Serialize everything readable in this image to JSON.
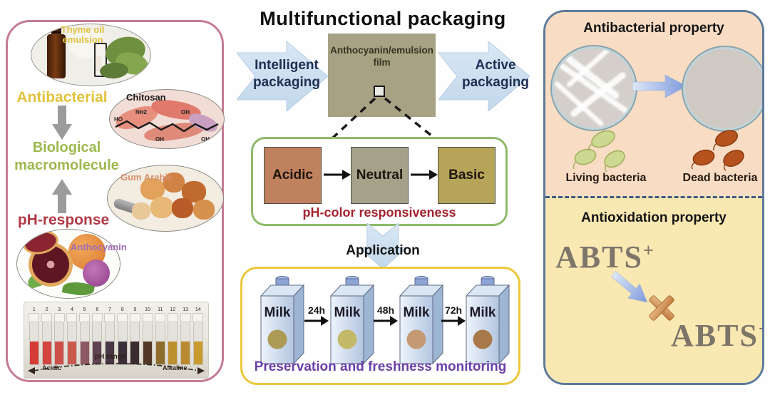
{
  "title": "Multifunctional packaging",
  "left_panel": {
    "thyme_label": "Thyme oil emulsion",
    "antibacterial_label": "Antibacterial",
    "chitosan_label": "Chitosan",
    "structure_labels": {
      "ho": "HO",
      "nh2": "NH2",
      "oh": "OH"
    },
    "biological_label": "Biological macromolecule",
    "gum_arabic_label": "Gum Arabic",
    "ph_response_label": "pH-response",
    "anthocyanin_label": "Anthocyanin",
    "vial_photo": {
      "acidic_label": "Acidic",
      "range_label": "pH range",
      "alkaline_label": "Alkaline",
      "vials": [
        {
          "number": "1",
          "color": "#d63c36"
        },
        {
          "number": "2",
          "color": "#d24540"
        },
        {
          "number": "3",
          "color": "#cd4f49"
        },
        {
          "number": "4",
          "color": "#ca5a50"
        },
        {
          "number": "5",
          "color": "#8d5a64"
        },
        {
          "number": "6",
          "color": "#5e4250"
        },
        {
          "number": "7",
          "color": "#483644"
        },
        {
          "number": "8",
          "color": "#3b3039"
        },
        {
          "number": "9",
          "color": "#392b2e"
        },
        {
          "number": "10",
          "color": "#523726"
        },
        {
          "number": "11",
          "color": "#8d6d2c"
        },
        {
          "number": "12",
          "color": "#bc902e"
        },
        {
          "number": "13",
          "color": "#ba8a30"
        },
        {
          "number": "14",
          "color": "#c89b2e"
        }
      ]
    }
  },
  "center": {
    "intelligent_arrow_label": "Intelligent packaging",
    "film_label": "Anthocyanin/emulsion film",
    "active_arrow_label": "Active packaging",
    "ph_box": {
      "squares": [
        {
          "label": "Acidic",
          "color": "#c0815f"
        },
        {
          "label": "Neutral",
          "color": "#a6a28a"
        },
        {
          "label": "Basic",
          "color": "#b6a458"
        }
      ],
      "caption": "pH-color responsiveness"
    },
    "application_label": "Application",
    "milk_box": {
      "carton_label": "Milk",
      "time_labels": [
        "24h",
        "48h",
        "72h"
      ],
      "dot_colors": [
        "#ab9b54",
        "#c3b968",
        "#c59a72",
        "#a9794b"
      ],
      "caption": "Preservation and freshness monitoring"
    }
  },
  "right_panel": {
    "antibacterial_section": {
      "title": "Antibacterial property",
      "living_label": "Living bacteria",
      "dead_label": "Dead bacteria"
    },
    "antioxidation_section": {
      "title": "Antioxidation property",
      "abts_text": "ABTS",
      "abts_superscript": "+"
    }
  },
  "colors": {
    "left_border": "#c47b93",
    "right_border": "#5d7b9a",
    "green_border": "#8fbb6b",
    "yellow_border": "#ecc83d",
    "peach_bg": "#f8dcc3",
    "pale_yellow_bg": "#f9e8b2",
    "film_bg": "#a7a284",
    "arrow_blue": "#cfe1f1",
    "living_bacteria": "#cdd890",
    "dead_bacteria": "#b5521d"
  }
}
